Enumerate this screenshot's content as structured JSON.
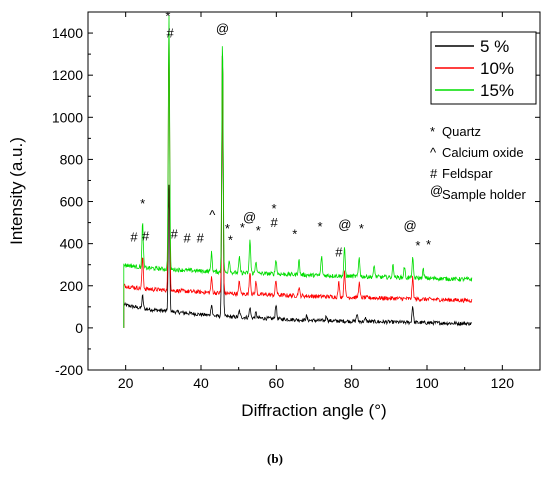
{
  "caption": "(b)",
  "chart_data": {
    "type": "line",
    "xlabel": "Diffraction angle (°)",
    "ylabel": "Intensity (a.u.)",
    "xlim": [
      10,
      130
    ],
    "ylim": [
      -200,
      1500
    ],
    "x_ticks": [
      20,
      40,
      60,
      80,
      100,
      120
    ],
    "y_ticks": [
      -200,
      0,
      200,
      400,
      600,
      800,
      1000,
      1200,
      1400
    ],
    "x_tick_labels": [
      "20",
      "40",
      "60",
      "80",
      "100",
      "120"
    ],
    "y_tick_labels": [
      "-200",
      "0",
      "200",
      "400",
      "600",
      "800",
      "1000",
      "1200",
      "1400"
    ],
    "grid": false,
    "legend_position": "top-right",
    "series": [
      {
        "name": "5 %",
        "color": "#000000",
        "x_range": [
          19.5,
          112
        ],
        "baseline": [
          [
            19.5,
            110
          ],
          [
            25,
            90
          ],
          [
            45,
            55
          ],
          [
            70,
            35
          ],
          [
            112,
            20
          ]
        ],
        "noise": 9,
        "peaks": [
          [
            24.5,
            60
          ],
          [
            31.5,
            600
          ],
          [
            42.8,
            55
          ],
          [
            45.7,
            1270
          ],
          [
            50.2,
            30
          ],
          [
            53,
            50
          ],
          [
            54.6,
            25
          ],
          [
            59.9,
            70
          ],
          [
            68,
            20
          ],
          [
            73.3,
            25
          ],
          [
            81.4,
            35
          ],
          [
            83.7,
            15
          ],
          [
            96.2,
            80
          ]
        ]
      },
      {
        "name": "10%",
        "color": "#ff0000",
        "x_range": [
          19.5,
          112
        ],
        "baseline": [
          [
            19.5,
            200
          ],
          [
            25,
            185
          ],
          [
            45,
            165
          ],
          [
            70,
            150
          ],
          [
            112,
            130
          ]
        ],
        "noise": 10,
        "peaks": [
          [
            24.5,
            150
          ],
          [
            31.5,
            1260
          ],
          [
            42.8,
            70
          ],
          [
            45.7,
            1150
          ],
          [
            50.2,
            60
          ],
          [
            53,
            110
          ],
          [
            54.6,
            60
          ],
          [
            59.9,
            70
          ],
          [
            66,
            40
          ],
          [
            76.6,
            70
          ],
          [
            78.1,
            130
          ],
          [
            82,
            70
          ],
          [
            96.2,
            100
          ]
        ]
      },
      {
        "name": "15%",
        "color": "#00dd00",
        "x_range": [
          19.5,
          112
        ],
        "baseline": [
          [
            19.5,
            300
          ],
          [
            25,
            285
          ],
          [
            45,
            265
          ],
          [
            70,
            250
          ],
          [
            112,
            230
          ]
        ],
        "noise": 10,
        "peaks": [
          [
            24.5,
            210
          ],
          [
            31.5,
            1200
          ],
          [
            42.8,
            90
          ],
          [
            45.7,
            1100
          ],
          [
            47.5,
            60
          ],
          [
            50.2,
            70
          ],
          [
            53,
            160
          ],
          [
            54.6,
            60
          ],
          [
            59.9,
            70
          ],
          [
            66,
            70
          ],
          [
            72,
            90
          ],
          [
            78.1,
            130
          ],
          [
            82,
            90
          ],
          [
            86,
            50
          ],
          [
            91,
            60
          ],
          [
            94,
            50
          ],
          [
            96.2,
            90
          ],
          [
            99,
            40
          ]
        ]
      }
    ],
    "peak_annotations": [
      {
        "text": "*",
        "x": 31.2,
        "y": 1460
      },
      {
        "text": "#",
        "x": 31.8,
        "y": 1380
      },
      {
        "text": "@",
        "x": 45.7,
        "y": 1400
      },
      {
        "text": "*",
        "x": 24.5,
        "y": 570
      },
      {
        "text": "#",
        "x": 22.2,
        "y": 410
      },
      {
        "text": "#",
        "x": 25.3,
        "y": 415
      },
      {
        "text": "#",
        "x": 32.9,
        "y": 425
      },
      {
        "text": "#",
        "x": 36.3,
        "y": 405
      },
      {
        "text": "#",
        "x": 39.8,
        "y": 405
      },
      {
        "text": "^",
        "x": 43,
        "y": 515
      },
      {
        "text": "*",
        "x": 47,
        "y": 450
      },
      {
        "text": "*",
        "x": 47.8,
        "y": 395
      },
      {
        "text": "*",
        "x": 51,
        "y": 455
      },
      {
        "text": "@",
        "x": 52.9,
        "y": 505
      },
      {
        "text": "*",
        "x": 55.2,
        "y": 440
      },
      {
        "text": "*",
        "x": 59.4,
        "y": 545
      },
      {
        "text": "#",
        "x": 59.4,
        "y": 480
      },
      {
        "text": "*",
        "x": 64.9,
        "y": 425
      },
      {
        "text": "*",
        "x": 71.6,
        "y": 460
      },
      {
        "text": "#",
        "x": 76.6,
        "y": 340
      },
      {
        "text": "@",
        "x": 78.2,
        "y": 470
      },
      {
        "text": "*",
        "x": 82.6,
        "y": 450
      },
      {
        "text": "@",
        "x": 95.5,
        "y": 465
      },
      {
        "text": "*",
        "x": 97.6,
        "y": 370
      },
      {
        "text": "*",
        "x": 100.4,
        "y": 375
      }
    ],
    "annotation_legend": [
      {
        "symbol": "*",
        "label": "Quartz"
      },
      {
        "symbol": "^",
        "label": "Calcium oxide"
      },
      {
        "symbol": "#",
        "label": "Feldspar"
      },
      {
        "symbol": "@",
        "label": "Sample holder"
      }
    ]
  }
}
